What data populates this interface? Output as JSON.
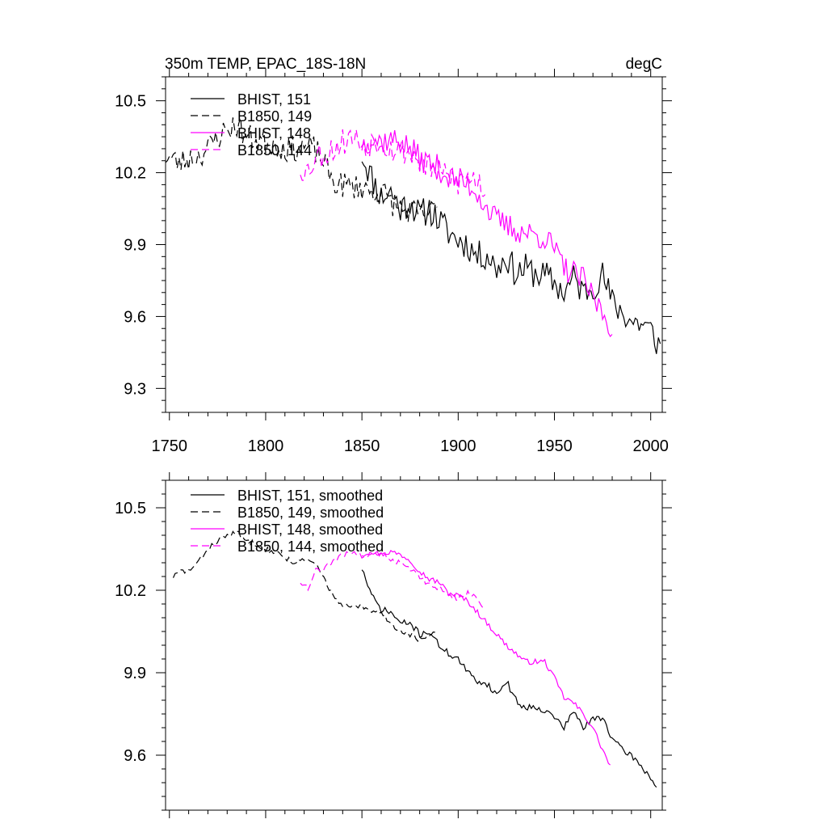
{
  "chart_data": [
    {
      "type": "line",
      "title_left": "350m TEMP, EPAC_18S-18N",
      "title_right": "degC",
      "xlim": [
        1748,
        2006
      ],
      "ylim": [
        9.2,
        10.6
      ],
      "xticks": [
        1750,
        1800,
        1850,
        1900,
        1950,
        2000
      ],
      "xtick_labels": [
        "1750",
        "1800",
        "1850",
        "1900",
        "1950",
        "2000"
      ],
      "yticks": [
        9.3,
        9.6,
        9.9,
        10.2,
        10.5
      ],
      "ytick_labels": [
        "9.3",
        "9.6",
        "9.9",
        "10.2",
        "10.5"
      ],
      "legend_position": "top-left",
      "series": [
        {
          "name": "BHIST, 151",
          "color": "#000000",
          "dash": "solid",
          "x_start": 1850,
          "x_end": 2005,
          "anchors": [
            [
              1850,
              10.28
            ],
            [
              1855,
              10.18
            ],
            [
              1860,
              10.1
            ],
            [
              1865,
              10.12
            ],
            [
              1870,
              10.05
            ],
            [
              1875,
              10.08
            ],
            [
              1880,
              10.02
            ],
            [
              1885,
              10.05
            ],
            [
              1890,
              10.0
            ],
            [
              1895,
              9.95
            ],
            [
              1900,
              9.92
            ],
            [
              1905,
              9.9
            ],
            [
              1910,
              9.85
            ],
            [
              1915,
              9.86
            ],
            [
              1920,
              9.8
            ],
            [
              1925,
              9.85
            ],
            [
              1930,
              9.78
            ],
            [
              1935,
              9.8
            ],
            [
              1940,
              9.78
            ],
            [
              1945,
              9.77
            ],
            [
              1950,
              9.74
            ],
            [
              1955,
              9.7
            ],
            [
              1960,
              9.76
            ],
            [
              1965,
              9.7
            ],
            [
              1970,
              9.73
            ],
            [
              1975,
              9.77
            ],
            [
              1980,
              9.66
            ],
            [
              1985,
              9.62
            ],
            [
              1990,
              9.58
            ],
            [
              1995,
              9.57
            ],
            [
              2000,
              9.54
            ],
            [
              2005,
              9.47
            ]
          ],
          "noise": 0.065,
          "seed": 11
        },
        {
          "name": "B1850, 149",
          "color": "#000000",
          "dash": "dashed",
          "x_start": 1748,
          "x_end": 1889,
          "anchors": [
            [
              1748,
              10.27
            ],
            [
              1755,
              10.24
            ],
            [
              1760,
              10.26
            ],
            [
              1765,
              10.27
            ],
            [
              1770,
              10.3
            ],
            [
              1775,
              10.35
            ],
            [
              1780,
              10.38
            ],
            [
              1785,
              10.4
            ],
            [
              1790,
              10.35
            ],
            [
              1795,
              10.34
            ],
            [
              1800,
              10.33
            ],
            [
              1805,
              10.32
            ],
            [
              1810,
              10.3
            ],
            [
              1815,
              10.3
            ],
            [
              1820,
              10.31
            ],
            [
              1825,
              10.3
            ],
            [
              1830,
              10.25
            ],
            [
              1835,
              10.16
            ],
            [
              1840,
              10.15
            ],
            [
              1845,
              10.14
            ],
            [
              1850,
              10.14
            ],
            [
              1855,
              10.12
            ],
            [
              1860,
              10.12
            ],
            [
              1865,
              10.08
            ],
            [
              1870,
              10.05
            ],
            [
              1875,
              10.04
            ],
            [
              1880,
              10.02
            ],
            [
              1885,
              10.03
            ],
            [
              1889,
              10.05
            ]
          ],
          "noise": 0.055,
          "seed": 23
        },
        {
          "name": "BHIST, 148",
          "color": "#ff00ff",
          "dash": "solid",
          "x_start": 1850,
          "x_end": 1980,
          "anchors": [
            [
              1850,
              10.32
            ],
            [
              1855,
              10.34
            ],
            [
              1860,
              10.33
            ],
            [
              1865,
              10.34
            ],
            [
              1870,
              10.33
            ],
            [
              1875,
              10.3
            ],
            [
              1880,
              10.26
            ],
            [
              1885,
              10.24
            ],
            [
              1890,
              10.22
            ],
            [
              1895,
              10.18
            ],
            [
              1900,
              10.17
            ],
            [
              1905,
              10.15
            ],
            [
              1910,
              10.12
            ],
            [
              1915,
              10.05
            ],
            [
              1920,
              10.0
            ],
            [
              1925,
              9.98
            ],
            [
              1930,
              9.96
            ],
            [
              1935,
              9.95
            ],
            [
              1940,
              9.94
            ],
            [
              1945,
              9.93
            ],
            [
              1950,
              9.88
            ],
            [
              1955,
              9.8
            ],
            [
              1960,
              9.78
            ],
            [
              1965,
              9.75
            ],
            [
              1970,
              9.68
            ],
            [
              1975,
              9.62
            ],
            [
              1980,
              9.55
            ]
          ],
          "noise": 0.055,
          "seed": 37
        },
        {
          "name": "B1850, 144",
          "color": "#ff00ff",
          "dash": "dashed",
          "x_start": 1818,
          "x_end": 1914,
          "anchors": [
            [
              1818,
              10.22
            ],
            [
              1822,
              10.21
            ],
            [
              1826,
              10.27
            ],
            [
              1830,
              10.28
            ],
            [
              1835,
              10.3
            ],
            [
              1840,
              10.33
            ],
            [
              1845,
              10.35
            ],
            [
              1850,
              10.32
            ],
            [
              1855,
              10.33
            ],
            [
              1860,
              10.34
            ],
            [
              1865,
              10.3
            ],
            [
              1870,
              10.3
            ],
            [
              1875,
              10.28
            ],
            [
              1880,
              10.25
            ],
            [
              1885,
              10.22
            ],
            [
              1890,
              10.2
            ],
            [
              1895,
              10.18
            ],
            [
              1900,
              10.16
            ],
            [
              1905,
              10.18
            ],
            [
              1910,
              10.17
            ],
            [
              1914,
              10.12
            ]
          ],
          "noise": 0.06,
          "seed": 53
        }
      ]
    },
    {
      "type": "line",
      "xlim": [
        1748,
        2006
      ],
      "ylim": [
        9.4,
        10.6
      ],
      "yticks": [
        9.6,
        9.9,
        10.2,
        10.5
      ],
      "ytick_labels": [
        "9.6",
        "9.9",
        "10.2",
        "10.5"
      ],
      "legend_position": "top-left",
      "series": [
        {
          "name": "BHIST, 151, smoothed",
          "color": "#000000",
          "dash": "solid",
          "x_start": 1850,
          "x_end": 2003,
          "anchors": [
            [
              1850,
              10.28
            ],
            [
              1855,
              10.18
            ],
            [
              1860,
              10.13
            ],
            [
              1865,
              10.12
            ],
            [
              1870,
              10.08
            ],
            [
              1875,
              10.08
            ],
            [
              1880,
              10.04
            ],
            [
              1885,
              10.05
            ],
            [
              1890,
              10.0
            ],
            [
              1895,
              9.97
            ],
            [
              1900,
              9.95
            ],
            [
              1905,
              9.9
            ],
            [
              1910,
              9.87
            ],
            [
              1915,
              9.86
            ],
            [
              1920,
              9.82
            ],
            [
              1925,
              9.87
            ],
            [
              1930,
              9.8
            ],
            [
              1935,
              9.77
            ],
            [
              1940,
              9.78
            ],
            [
              1945,
              9.76
            ],
            [
              1950,
              9.74
            ],
            [
              1955,
              9.7
            ],
            [
              1960,
              9.76
            ],
            [
              1965,
              9.7
            ],
            [
              1970,
              9.73
            ],
            [
              1975,
              9.74
            ],
            [
              1980,
              9.66
            ],
            [
              1985,
              9.62
            ],
            [
              1990,
              9.6
            ],
            [
              1995,
              9.56
            ],
            [
              2000,
              9.52
            ],
            [
              2003,
              9.48
            ]
          ],
          "noise": 0.012,
          "seed": 71
        },
        {
          "name": "B1850, 149, smoothed",
          "color": "#000000",
          "dash": "dashed",
          "x_start": 1752,
          "x_end": 1889,
          "anchors": [
            [
              1752,
              10.25
            ],
            [
              1756,
              10.27
            ],
            [
              1760,
              10.27
            ],
            [
              1765,
              10.3
            ],
            [
              1770,
              10.35
            ],
            [
              1775,
              10.38
            ],
            [
              1780,
              10.4
            ],
            [
              1785,
              10.41
            ],
            [
              1790,
              10.38
            ],
            [
              1795,
              10.37
            ],
            [
              1800,
              10.35
            ],
            [
              1805,
              10.34
            ],
            [
              1810,
              10.32
            ],
            [
              1815,
              10.3
            ],
            [
              1820,
              10.31
            ],
            [
              1825,
              10.3
            ],
            [
              1830,
              10.25
            ],
            [
              1835,
              10.18
            ],
            [
              1840,
              10.14
            ],
            [
              1845,
              10.14
            ],
            [
              1850,
              10.14
            ],
            [
              1855,
              10.12
            ],
            [
              1860,
              10.12
            ],
            [
              1865,
              10.08
            ],
            [
              1870,
              10.05
            ],
            [
              1875,
              10.04
            ],
            [
              1880,
              10.02
            ],
            [
              1885,
              10.03
            ],
            [
              1889,
              10.05
            ]
          ],
          "noise": 0.01,
          "seed": 83
        },
        {
          "name": "BHIST, 148, smoothed",
          "color": "#ff00ff",
          "dash": "solid",
          "x_start": 1850,
          "x_end": 1979,
          "anchors": [
            [
              1850,
              10.33
            ],
            [
              1855,
              10.34
            ],
            [
              1860,
              10.33
            ],
            [
              1865,
              10.34
            ],
            [
              1870,
              10.33
            ],
            [
              1875,
              10.31
            ],
            [
              1880,
              10.27
            ],
            [
              1885,
              10.24
            ],
            [
              1890,
              10.23
            ],
            [
              1895,
              10.19
            ],
            [
              1900,
              10.18
            ],
            [
              1905,
              10.16
            ],
            [
              1910,
              10.12
            ],
            [
              1915,
              10.08
            ],
            [
              1920,
              10.04
            ],
            [
              1925,
              10.0
            ],
            [
              1930,
              9.97
            ],
            [
              1935,
              9.94
            ],
            [
              1940,
              9.94
            ],
            [
              1945,
              9.94
            ],
            [
              1950,
              9.88
            ],
            [
              1955,
              9.81
            ],
            [
              1960,
              9.79
            ],
            [
              1965,
              9.75
            ],
            [
              1970,
              9.7
            ],
            [
              1975,
              9.62
            ],
            [
              1979,
              9.56
            ]
          ],
          "noise": 0.01,
          "seed": 97
        },
        {
          "name": "B1850, 144, smoothed",
          "color": "#ff00ff",
          "dash": "dashed",
          "x_start": 1818,
          "x_end": 1914,
          "anchors": [
            [
              1818,
              10.23
            ],
            [
              1822,
              10.21
            ],
            [
              1826,
              10.27
            ],
            [
              1830,
              10.28
            ],
            [
              1835,
              10.3
            ],
            [
              1840,
              10.33
            ],
            [
              1845,
              10.34
            ],
            [
              1850,
              10.32
            ],
            [
              1855,
              10.33
            ],
            [
              1860,
              10.34
            ],
            [
              1865,
              10.31
            ],
            [
              1870,
              10.3
            ],
            [
              1875,
              10.28
            ],
            [
              1880,
              10.25
            ],
            [
              1885,
              10.22
            ],
            [
              1890,
              10.21
            ],
            [
              1895,
              10.18
            ],
            [
              1900,
              10.17
            ],
            [
              1905,
              10.19
            ],
            [
              1910,
              10.17
            ],
            [
              1914,
              10.13
            ]
          ],
          "noise": 0.01,
          "seed": 109
        }
      ]
    }
  ]
}
